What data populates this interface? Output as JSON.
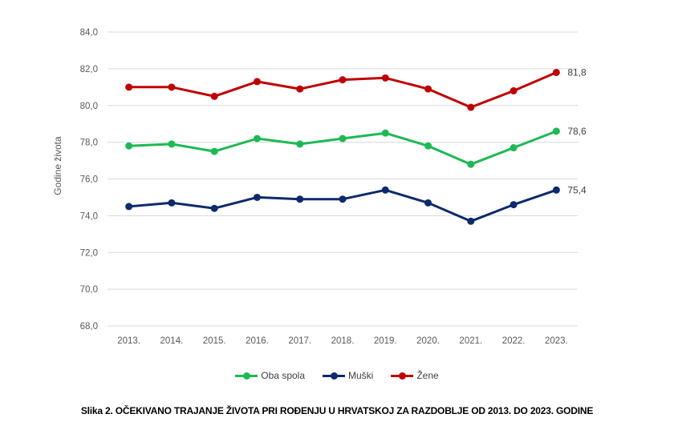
{
  "chart_data": {
    "type": "line",
    "title": "",
    "xlabel": "",
    "ylabel": "Godine života",
    "categories": [
      "2013.",
      "2014.",
      "2015.",
      "2016.",
      "2017.",
      "2018.",
      "2019.",
      "2020.",
      "2021.",
      "2022.",
      "2023."
    ],
    "ylim": [
      68.0,
      84.0
    ],
    "yticks": [
      "68,0",
      "70,0",
      "72,0",
      "74,0",
      "76,0",
      "78,0",
      "80,0",
      "82,0",
      "84,0"
    ],
    "grid": true,
    "legend_position": "bottom",
    "series": [
      {
        "name": "Oba spola",
        "color": "#1db954",
        "values": [
          77.8,
          77.9,
          77.5,
          78.2,
          77.9,
          78.2,
          78.5,
          77.8,
          76.8,
          77.7,
          78.6
        ],
        "end_label": "78,6"
      },
      {
        "name": "Muški",
        "color": "#0d2a6b",
        "values": [
          74.5,
          74.7,
          74.4,
          75.0,
          74.9,
          74.9,
          75.4,
          74.7,
          73.7,
          74.6,
          75.4
        ],
        "end_label": "75,4"
      },
      {
        "name": "Žene",
        "color": "#c00000",
        "values": [
          81.0,
          81.0,
          80.5,
          81.3,
          80.9,
          81.4,
          81.5,
          80.9,
          79.9,
          80.8,
          81.8
        ],
        "end_label": "81,8"
      }
    ]
  },
  "caption": "Slika 2. OČEKIVANO TRAJANJE ŽIVOTA PRI ROĐENJU U HRVATSKOJ ZA RAZDOBLJE OD 2013. DO 2023. GODINE"
}
